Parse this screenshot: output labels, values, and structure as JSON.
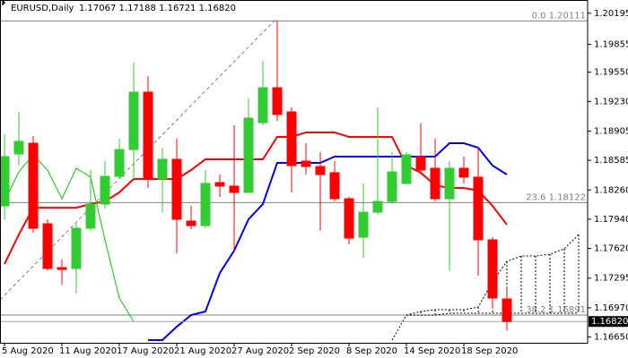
{
  "chart_data": {
    "type": "candlestick",
    "title": "EURUSD,Daily",
    "subtitle": "1.17067 1.17188 1.16721 1.16820",
    "categories": [
      "5 Aug 2020",
      null,
      null,
      null,
      "11 Aug 2020",
      null,
      null,
      null,
      "17 Aug 2020",
      null,
      null,
      null,
      "21 Aug 2020",
      null,
      null,
      null,
      "27 Aug 2020",
      null,
      null,
      null,
      "2 Sep 2020",
      null,
      null,
      null,
      "8 Sep 2020",
      null,
      null,
      null,
      "14 Sep 2020",
      null,
      null,
      null,
      "18 Sep 2020",
      null,
      null,
      null,
      null,
      null,
      null,
      null,
      null
    ],
    "open": [
      1.18086,
      1.18654,
      1.18772,
      1.1789,
      1.1741,
      1.174,
      1.17841,
      1.18106,
      1.18409,
      1.18703,
      1.19331,
      1.1838,
      1.18596,
      1.17919,
      1.1787,
      1.18341,
      1.18302,
      1.18233,
      1.18997,
      1.1938,
      1.19115,
      1.18576,
      1.18517,
      1.18449,
      1.18164,
      1.17743,
      1.18017,
      1.18135,
      1.18331,
      1.18625,
      1.18498,
      1.18164,
      1.18498,
      1.184,
      1.17714,
      1.17067,
      null,
      null,
      null,
      null,
      null
    ],
    "high": [
      1.1887,
      1.19115,
      1.1885,
      1.17939,
      1.17498,
      1.1789,
      1.18478,
      1.18576,
      1.18821,
      1.19654,
      1.19507,
      1.18723,
      1.18821,
      1.18086,
      1.18478,
      1.18429,
      1.18968,
      1.19262,
      1.19674,
      1.20111,
      1.19164,
      1.18772,
      1.18674,
      1.18576,
      1.18184,
      1.18331,
      1.19164,
      1.18674,
      1.18674,
      1.18988,
      1.18821,
      1.18576,
      1.18625,
      1.18723,
      1.17743,
      1.17188,
      null,
      null,
      null,
      null,
      null
    ],
    "low": [
      1.17939,
      1.18527,
      1.17792,
      1.1738,
      1.17224,
      1.17126,
      1.17812,
      1.18057,
      1.1838,
      1.1838,
      1.18282,
      1.18017,
      1.17567,
      1.17831,
      1.17841,
      1.18184,
      1.17596,
      1.18233,
      1.18968,
      1.19017,
      1.18233,
      1.18429,
      1.17812,
      1.18135,
      1.17665,
      1.17518,
      1.17988,
      1.18106,
      1.18321,
      1.18429,
      1.18135,
      1.1738,
      1.18331,
      1.17322,
      1.16959,
      1.16721,
      null,
      null,
      null,
      null,
      null
    ],
    "close": [
      1.18625,
      1.18792,
      1.17841,
      1.174,
      1.1739,
      1.17841,
      1.18106,
      1.18409,
      1.18703,
      1.19331,
      1.1838,
      1.18596,
      1.17939,
      1.1787,
      1.18331,
      1.18302,
      1.18233,
      1.19046,
      1.1938,
      1.19086,
      1.18527,
      1.18517,
      1.18429,
      1.18164,
      1.17733,
      1.18017,
      1.18135,
      1.18458,
      1.18645,
      1.18478,
      1.18164,
      1.18498,
      1.184,
      1.17714,
      1.17077,
      1.1682,
      null,
      null,
      null,
      null,
      null
    ],
    "up_color": "#33cc33",
    "down_color": "#ff0000",
    "lines": [
      {
        "color": "#ff0000",
        "width": 2,
        "values": [
          1.17449,
          1.17772,
          1.18066,
          1.18066,
          1.18066,
          1.18066,
          1.18106,
          1.18135,
          1.18233,
          1.1838,
          1.1838,
          1.1838,
          1.1838,
          1.18478,
          1.18596,
          1.18596,
          1.18596,
          1.18596,
          1.18596,
          1.18841,
          1.18841,
          1.1889,
          1.1889,
          1.1889,
          1.18841,
          1.18841,
          1.18841,
          1.18841,
          1.18527,
          1.18449,
          1.18311,
          1.18282,
          1.18282,
          1.18253,
          1.18086,
          1.1788,
          null,
          null,
          null,
          null,
          null
        ]
      },
      {
        "color": "#0000ff",
        "width": 2,
        "values": [
          null,
          null,
          null,
          null,
          null,
          null,
          null,
          null,
          null,
          null,
          1.16616,
          1.16616,
          1.16763,
          1.1689,
          1.1693,
          1.17351,
          1.17596,
          1.17939,
          1.18106,
          1.18556,
          1.18556,
          1.18556,
          1.18556,
          1.18625,
          1.18625,
          1.18625,
          1.18625,
          1.18625,
          1.18625,
          1.18625,
          1.18625,
          1.18772,
          1.18772,
          1.18723,
          1.18527,
          1.18429,
          null,
          null,
          null,
          null,
          null
        ]
      },
      {
        "color": "#00cc00",
        "width": 1,
        "values": [
          1.18135,
          1.18458,
          1.18645,
          1.18478,
          1.18164,
          1.18498,
          1.184,
          1.17714,
          1.17077,
          1.1682,
          null,
          null,
          null,
          null,
          null,
          null,
          null,
          null,
          null,
          null,
          null,
          null,
          null,
          null,
          null,
          null,
          null,
          null,
          null,
          null,
          null,
          null,
          null,
          null,
          null,
          null,
          null,
          null,
          null,
          null,
          null
        ]
      }
    ],
    "cloud": {
      "color": "#000000",
      "upper": [
        null,
        null,
        null,
        null,
        null,
        null,
        null,
        null,
        null,
        null,
        null,
        null,
        null,
        null,
        null,
        null,
        null,
        null,
        null,
        null,
        null,
        null,
        null,
        null,
        null,
        null,
        null,
        1.16616,
        1.1689,
        1.1693,
        1.16949,
        1.16949,
        1.16949,
        1.16979,
        1.17253,
        1.17478,
        1.17537,
        1.17537,
        1.17557,
        1.17616,
        1.17772
      ],
      "lower": [
        null,
        null,
        null,
        null,
        null,
        null,
        null,
        null,
        null,
        null,
        null,
        null,
        null,
        null,
        null,
        null,
        null,
        null,
        null,
        null,
        null,
        null,
        null,
        null,
        null,
        null,
        null,
        null,
        1.1689,
        1.1689,
        1.1689,
        1.1691,
        1.1691,
        1.1691,
        1.1691,
        1.1691,
        1.1691,
        1.1691,
        1.1691,
        1.1691,
        1.1691
      ]
    },
    "fibo_levels": [
      {
        "value": 1.20111,
        "label": "0.0 1.20111"
      },
      {
        "value": 1.18122,
        "label": "23.6 1.18122"
      },
      {
        "value": 1.16891,
        "label": "38.2 1.16891"
      }
    ],
    "last_price": {
      "value": 1.1682,
      "label": "1.16820"
    },
    "ylim": [
      1.16587,
      1.2034
    ],
    "yticks": [
      {
        "value": 1.20195,
        "label": "1.20195"
      },
      {
        "value": 1.19855,
        "label": "1.19855"
      },
      {
        "value": 1.1955,
        "label": "1.19550"
      },
      {
        "value": 1.1923,
        "label": "1.19230"
      },
      {
        "value": 1.18905,
        "label": "1.18905"
      },
      {
        "value": 1.18585,
        "label": "1.18585"
      },
      {
        "value": 1.1826,
        "label": "1.18260"
      },
      {
        "value": 1.1794,
        "label": "1.17940"
      },
      {
        "value": 1.1762,
        "label": "1.17620"
      },
      {
        "value": 1.17295,
        "label": "1.17295"
      },
      {
        "value": 1.1697,
        "label": "1.16970"
      },
      {
        "value": 1.1665,
        "label": "1.16650"
      }
    ]
  }
}
